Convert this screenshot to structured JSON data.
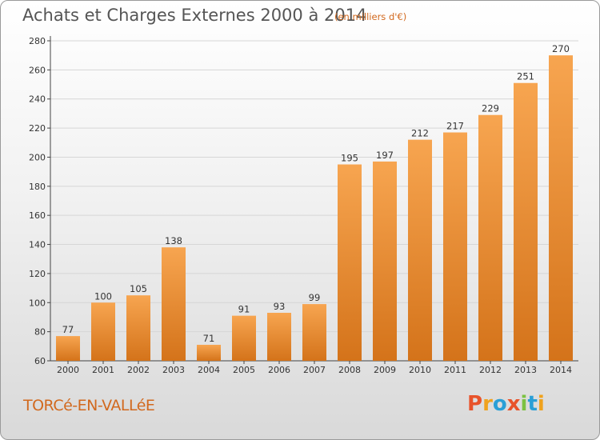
{
  "header": {
    "title": "Achats et Charges Externes 2000 à 2014",
    "unit": "(en milliers d'€)"
  },
  "footer": {
    "commune": "TORCé-EN-VALLéE",
    "logo": "Proxiti"
  },
  "colors": {
    "bar_top": "#f7a550",
    "bar_bottom": "#d4731a",
    "title": "#555555",
    "accent": "#d2691e"
  },
  "chart_data": {
    "type": "bar",
    "title": "Achats et Charges Externes 2000 à 2014",
    "subtitle": "(en milliers d'€)",
    "xlabel": "",
    "ylabel": "",
    "categories": [
      "2000",
      "2001",
      "2002",
      "2003",
      "2004",
      "2005",
      "2006",
      "2007",
      "2008",
      "2009",
      "2010",
      "2011",
      "2012",
      "2013",
      "2014"
    ],
    "values": [
      77,
      100,
      105,
      138,
      71,
      91,
      93,
      99,
      195,
      197,
      212,
      217,
      229,
      251,
      270
    ],
    "ylim": [
      60,
      280
    ],
    "yticks": [
      60,
      80,
      100,
      120,
      140,
      160,
      180,
      200,
      220,
      240,
      260,
      280
    ],
    "grid": true,
    "data_labels": true
  }
}
